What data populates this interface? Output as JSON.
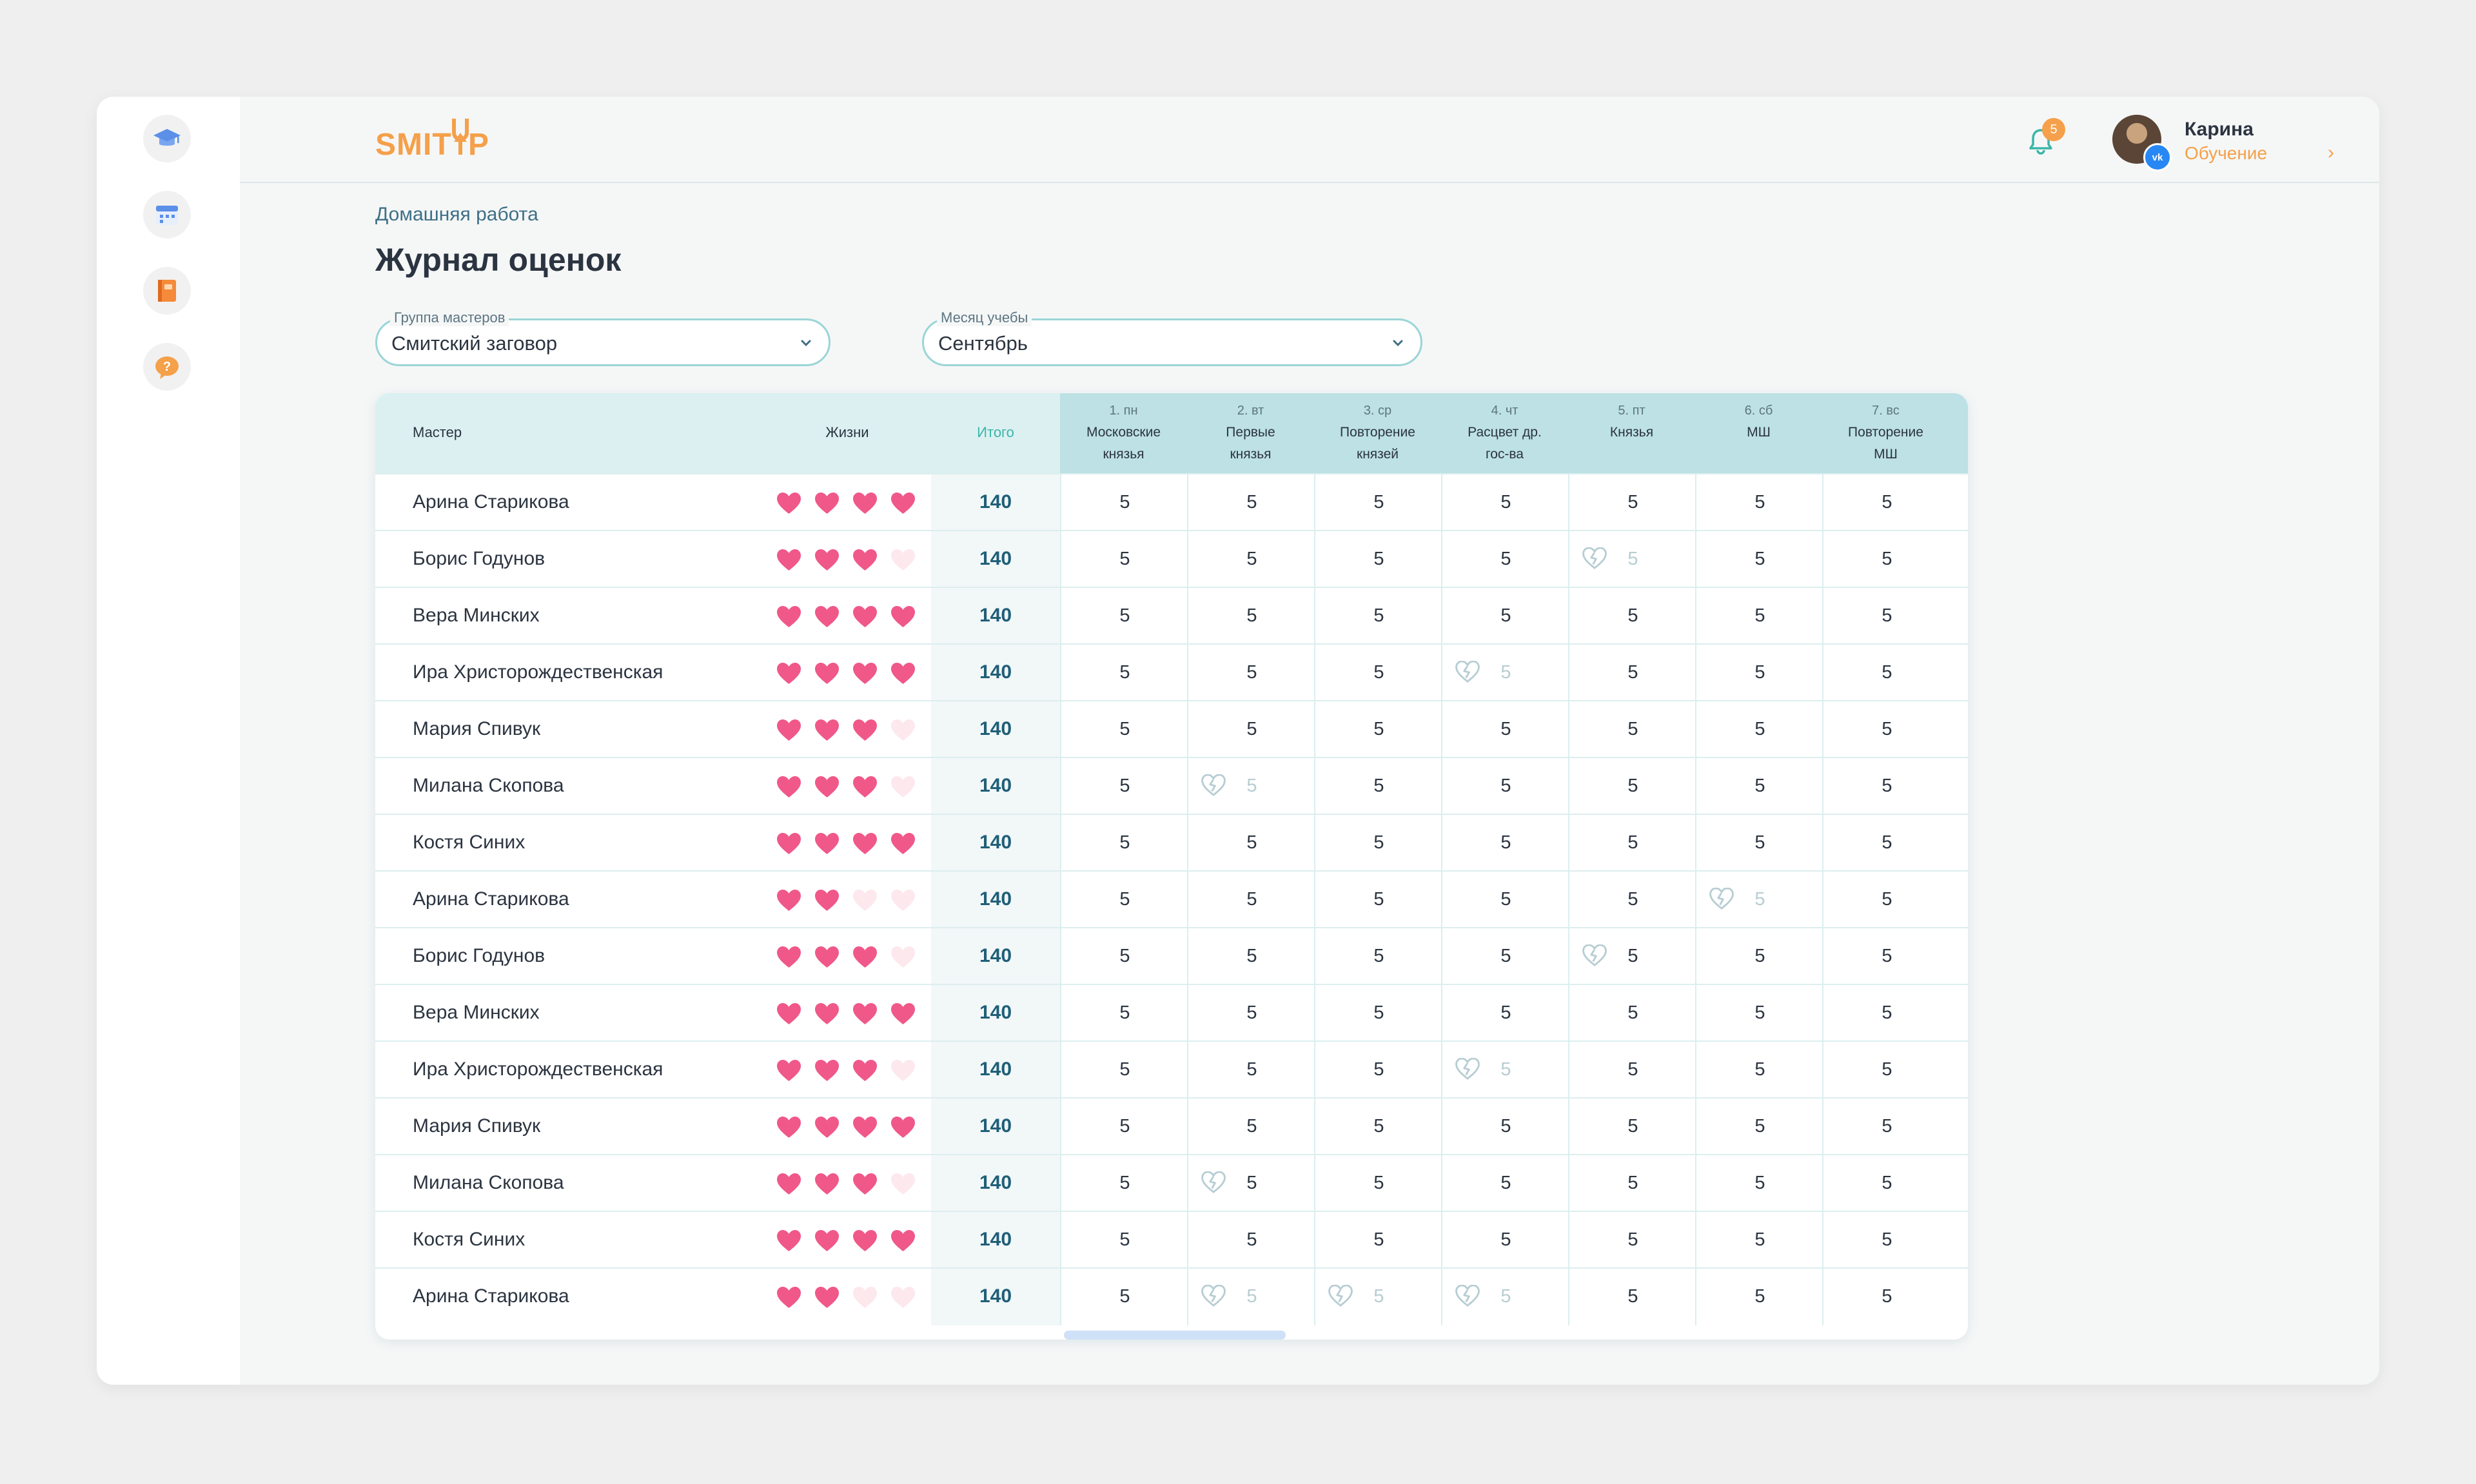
{
  "app": {
    "logo": "SMITUP",
    "colors": {
      "accent": "#f5a04a",
      "teal": "#9ad5d7",
      "heart": "#f0588a",
      "heart_empty": "#fde8ee"
    }
  },
  "sidebar": {
    "items": [
      {
        "icon": "graduation-cap-icon"
      },
      {
        "icon": "calendar-icon"
      },
      {
        "icon": "notebook-icon"
      },
      {
        "icon": "help-icon"
      }
    ]
  },
  "header": {
    "notifications": {
      "icon": "bell-icon",
      "count": "5"
    },
    "user": {
      "name": "Карина",
      "role": "Обучение",
      "social_badge": "vk"
    }
  },
  "breadcrumb": "Домашняя работа",
  "title": "Журнал оценок",
  "filters": {
    "group": {
      "label": "Группа мастеров",
      "value": "Смитский заговор"
    },
    "month": {
      "label": "Месяц учебы",
      "value": "Сентябрь"
    }
  },
  "table": {
    "headers": {
      "master": "Мастер",
      "lives": "Жизни",
      "total": "Итого"
    },
    "days": [
      {
        "num": "1. пн",
        "line1": "Московские",
        "line2": "князья"
      },
      {
        "num": "2. вт",
        "line1": "Первые",
        "line2": "князья"
      },
      {
        "num": "3. ср",
        "line1": "Повторение",
        "line2": "князей"
      },
      {
        "num": "4. чт",
        "line1": "Расцвет др.",
        "line2": "гос-ва"
      },
      {
        "num": "5. пт",
        "line1": "Князья",
        "line2": ""
      },
      {
        "num": "6. сб",
        "line1": "МШ",
        "line2": ""
      },
      {
        "num": "7. вс",
        "line1": "Повторение",
        "line2": "МШ"
      }
    ],
    "rows": [
      {
        "name": "Арина Старикова",
        "lives": 4,
        "total": "140",
        "grades": [
          "5",
          "5",
          "5",
          "5",
          "5",
          "5",
          "5"
        ],
        "broken": [],
        "faded": []
      },
      {
        "name": "Борис Годунов",
        "lives": 3,
        "total": "140",
        "grades": [
          "5",
          "5",
          "5",
          "5",
          "5",
          "5",
          "5"
        ],
        "broken": [
          4
        ],
        "faded": [
          4
        ]
      },
      {
        "name": "Вера Минских",
        "lives": 4,
        "total": "140",
        "grades": [
          "5",
          "5",
          "5",
          "5",
          "5",
          "5",
          "5"
        ],
        "broken": [],
        "faded": []
      },
      {
        "name": "Ира Христорождественская",
        "lives": 4,
        "total": "140",
        "grades": [
          "5",
          "5",
          "5",
          "5",
          "5",
          "5",
          "5"
        ],
        "broken": [
          3
        ],
        "faded": [
          3
        ]
      },
      {
        "name": "Мария Спивук",
        "lives": 3,
        "total": "140",
        "grades": [
          "5",
          "5",
          "5",
          "5",
          "5",
          "5",
          "5"
        ],
        "broken": [],
        "faded": []
      },
      {
        "name": "Милана Скопова",
        "lives": 3,
        "total": "140",
        "grades": [
          "5",
          "5",
          "5",
          "5",
          "5",
          "5",
          "5"
        ],
        "broken": [
          1
        ],
        "faded": [
          1
        ]
      },
      {
        "name": "Костя Синих",
        "lives": 4,
        "total": "140",
        "grades": [
          "5",
          "5",
          "5",
          "5",
          "5",
          "5",
          "5"
        ],
        "broken": [],
        "faded": []
      },
      {
        "name": "Арина Старикова",
        "lives": 2,
        "total": "140",
        "grades": [
          "5",
          "5",
          "5",
          "5",
          "5",
          "5",
          "5"
        ],
        "broken": [
          5
        ],
        "faded": [
          5
        ]
      },
      {
        "name": "Борис Годунов",
        "lives": 3,
        "total": "140",
        "grades": [
          "5",
          "5",
          "5",
          "5",
          "5",
          "5",
          "5"
        ],
        "broken": [
          4
        ],
        "faded": []
      },
      {
        "name": "Вера Минских",
        "lives": 4,
        "total": "140",
        "grades": [
          "5",
          "5",
          "5",
          "5",
          "5",
          "5",
          "5"
        ],
        "broken": [],
        "faded": []
      },
      {
        "name": "Ира Христорождественская",
        "lives": 3,
        "total": "140",
        "grades": [
          "5",
          "5",
          "5",
          "5",
          "5",
          "5",
          "5"
        ],
        "broken": [
          3
        ],
        "faded": [
          3
        ]
      },
      {
        "name": "Мария Спивук",
        "lives": 4,
        "total": "140",
        "grades": [
          "5",
          "5",
          "5",
          "5",
          "5",
          "5",
          "5"
        ],
        "broken": [],
        "faded": []
      },
      {
        "name": "Милана Скопова",
        "lives": 3,
        "total": "140",
        "grades": [
          "5",
          "5",
          "5",
          "5",
          "5",
          "5",
          "5"
        ],
        "broken": [
          1
        ],
        "faded": []
      },
      {
        "name": "Костя Синих",
        "lives": 4,
        "total": "140",
        "grades": [
          "5",
          "5",
          "5",
          "5",
          "5",
          "5",
          "5"
        ],
        "broken": [],
        "faded": []
      },
      {
        "name": "Арина Старикова",
        "lives": 2,
        "total": "140",
        "grades": [
          "5",
          "5",
          "5",
          "5",
          "5",
          "5",
          "5"
        ],
        "broken": [
          1,
          2,
          3
        ],
        "faded": [
          1,
          2,
          3
        ]
      }
    ],
    "max_lives": 4
  }
}
